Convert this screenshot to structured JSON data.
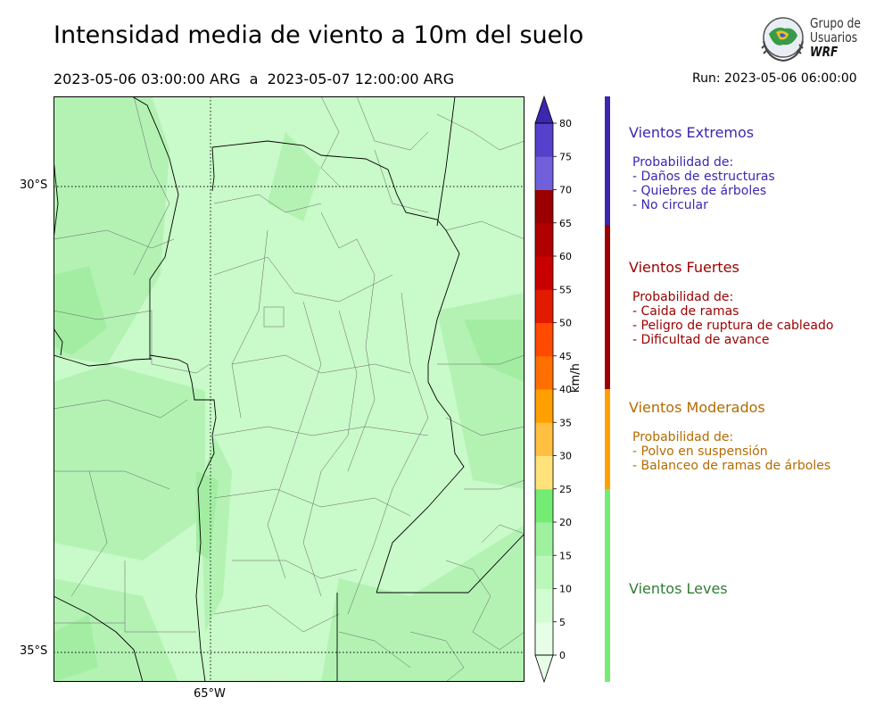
{
  "header": {
    "title": "Intensidad media de viento a 10m del suelo",
    "period": "2023-05-06 03:00:00 ARG  a  2023-05-07 12:00:00 ARG",
    "run": "Run: 2023-05-06 06:00:00"
  },
  "logo": {
    "line1": "Grupo de",
    "line2": "Usuarios",
    "line3": "WRF"
  },
  "map": {
    "lat_labels": [
      "30°S",
      "35°S"
    ],
    "lon_labels": [
      "65°W"
    ],
    "gridlines": "dotted"
  },
  "colorbar": {
    "units": "km/h",
    "ticks": [
      "0",
      "5",
      "10",
      "15",
      "20",
      "25",
      "30",
      "35",
      "40",
      "45",
      "50",
      "55",
      "60",
      "65",
      "70",
      "75",
      "80"
    ],
    "colors": [
      "#e6fde6",
      "#d2fcd2",
      "#b9f8b9",
      "#9ef29e",
      "#74ec74",
      "#ffe27a",
      "#ffbf40",
      "#ffa000",
      "#ff7000",
      "#ff4a00",
      "#e21a00",
      "#c90000",
      "#b00000",
      "#9a0000",
      "#7060dc",
      "#5442cc",
      "#3a28b0"
    ],
    "extend": "both"
  },
  "categories": [
    {
      "title": "Vientos Extremos",
      "color": "#3a28b0",
      "desc": [
        "Probabilidad de:",
        "- Daños de estructuras",
        "- Quiebres de árboles",
        "- No circular"
      ]
    },
    {
      "title": "Vientos Fuertes",
      "color": "#9a0000",
      "desc": [
        "Probabilidad de:",
        "- Caida de ramas",
        "- Peligro de ruptura de cableado",
        "- Dificultad de avance"
      ]
    },
    {
      "title": "Vientos Moderados",
      "color": "#b36b00",
      "bar_color": "#ffa000",
      "desc": [
        "Probabilidad de:",
        "- Polvo en suspensión",
        "- Balanceo de ramas de árboles"
      ]
    },
    {
      "title": "Vientos Leves",
      "color": "#2e7d32",
      "bar_color": "#74ec74",
      "desc": []
    }
  ]
}
